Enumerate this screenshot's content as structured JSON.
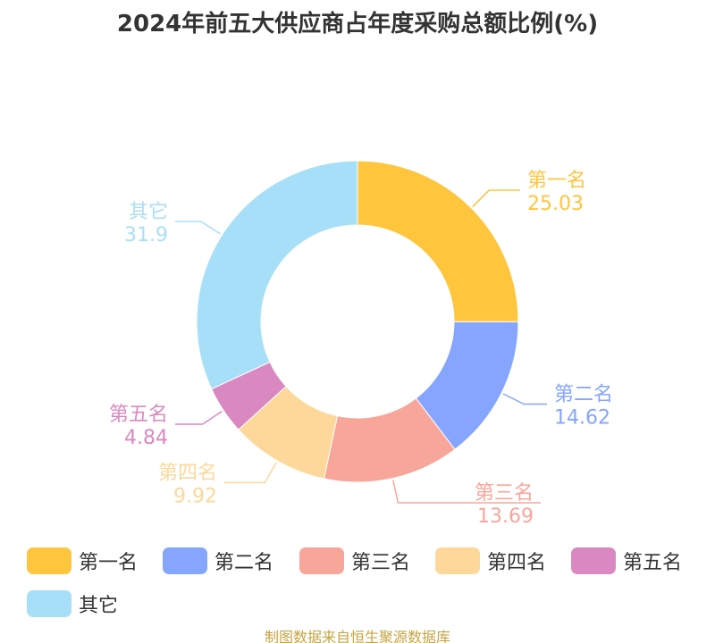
{
  "chart_data": {
    "type": "pie",
    "title": "2024年前五大供应商占年度采购总额比例(%)",
    "categories": [
      "第一名",
      "第二名",
      "第三名",
      "第四名",
      "第五名",
      "其它"
    ],
    "values": [
      25.03,
      14.62,
      13.69,
      9.92,
      4.84,
      31.9
    ],
    "value_labels": [
      "25.03",
      "14.62",
      "13.69",
      "9.92",
      "4.84",
      "31.9"
    ],
    "colors": [
      "#ffc53d",
      "#85a5ff",
      "#f8a59a",
      "#fdd89a",
      "#d988c1",
      "#a8dff8"
    ],
    "donut": true,
    "legend_position": "bottom"
  },
  "source_text": "制图数据来自恒生聚源数据库"
}
